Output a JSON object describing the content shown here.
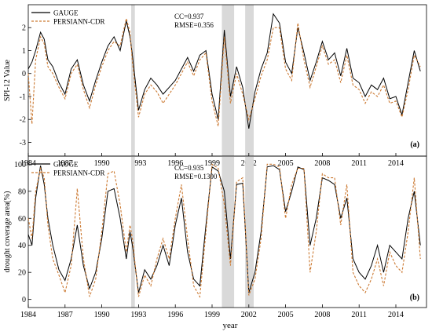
{
  "x_axis_label": "year",
  "x_tick_labels": [
    "1984",
    "1987",
    "1990",
    "1993",
    "1996",
    "1999",
    "2002",
    "2005",
    "2008",
    "2011",
    "2014"
  ],
  "x_ticks": [
    1984,
    1987,
    1990,
    1993,
    1996,
    1999,
    2002,
    2005,
    2008,
    2011,
    2014
  ],
  "x_range": [
    1984,
    2016.5
  ],
  "shaded_periods": [
    [
      1992.4,
      1992.7
    ],
    [
      1999.8,
      2000.8
    ],
    [
      2001.7,
      2002.4
    ]
  ],
  "colors": {
    "gauge": "#000000",
    "persiann": "#cc7a33",
    "shade": "#d9d9d9"
  },
  "chart_data": [
    {
      "type": "line",
      "panel_label": "(a)",
      "ylabel": "SPI-12 Value",
      "ylim": [
        -3.6,
        3.0
      ],
      "yticks": [
        -3,
        -2,
        -1,
        0,
        1,
        2
      ],
      "ytick_labels": [
        "-3",
        "-2",
        "-1",
        "0",
        "1",
        "2"
      ],
      "annotation": [
        "CC=0.937",
        "RMSE=0.356"
      ],
      "legend": [
        "GAUGE",
        "PERSIANN-CDR"
      ],
      "series": [
        {
          "name": "GAUGE",
          "style": "solid",
          "color": "#000000",
          "x": [
            1984,
            1984.3,
            1984.6,
            1985,
            1985.3,
            1985.6,
            1986,
            1986.5,
            1987,
            1987.5,
            1988,
            1988.5,
            1989,
            1989.5,
            1990,
            1990.5,
            1991,
            1991.5,
            1992,
            1992.3,
            1992.5,
            1993,
            1993.5,
            1994,
            1994.5,
            1995,
            1995.5,
            1996,
            1996.5,
            1997,
            1997.5,
            1998,
            1998.5,
            1999,
            1999.5,
            2000,
            2000.5,
            2001,
            2001.5,
            2002,
            2002.5,
            2003,
            2003.5,
            2004,
            2004.5,
            2005,
            2005.5,
            2006,
            2006.5,
            2007,
            2007.5,
            2008,
            2008.5,
            2009,
            2009.5,
            2010,
            2010.5,
            2011,
            2011.5,
            2012,
            2012.5,
            2013,
            2013.5,
            2014,
            2014.5,
            2015,
            2015.5,
            2016
          ],
          "y": [
            0.2,
            0.5,
            1.0,
            1.8,
            1.5,
            0.6,
            0.3,
            -0.4,
            -0.9,
            0.2,
            0.6,
            -0.5,
            -1.2,
            -0.3,
            0.5,
            1.2,
            1.6,
            1.0,
            2.3,
            1.6,
            0.8,
            -1.6,
            -0.7,
            -0.2,
            -0.5,
            -0.9,
            -0.6,
            -0.3,
            0.2,
            0.7,
            0.1,
            0.8,
            1.0,
            -0.9,
            -2.0,
            1.9,
            -1.0,
            0.3,
            -0.6,
            -2.4,
            -0.8,
            0.2,
            0.9,
            2.6,
            2.2,
            0.5,
            0.0,
            2.0,
            0.9,
            -0.3,
            0.5,
            1.4,
            0.6,
            0.9,
            -0.1,
            1.1,
            -0.2,
            -0.4,
            -1.0,
            -0.5,
            -0.7,
            -0.2,
            -1.1,
            -1.0,
            -1.8,
            -0.4,
            1.0,
            0.1
          ]
        },
        {
          "name": "PERSIANN-CDR",
          "style": "dashed",
          "color": "#cc7a33",
          "x": [
            1984,
            1984.3,
            1984.6,
            1985,
            1985.3,
            1985.6,
            1986,
            1986.5,
            1987,
            1987.5,
            1988,
            1988.5,
            1989,
            1989.5,
            1990,
            1990.5,
            1991,
            1991.5,
            1992,
            1992.3,
            1992.5,
            1993,
            1993.5,
            1994,
            1994.5,
            1995,
            1995.5,
            1996,
            1996.5,
            1997,
            1997.5,
            1998,
            1998.5,
            1999,
            1999.5,
            2000,
            2000.5,
            2001,
            2001.5,
            2002,
            2002.5,
            2003,
            2003.5,
            2004,
            2004.5,
            2005,
            2005.5,
            2006,
            2006.5,
            2007,
            2007.5,
            2008,
            2008.5,
            2009,
            2009.5,
            2010,
            2010.5,
            2011,
            2011.5,
            2012,
            2012.5,
            2013,
            2013.5,
            2014,
            2014.5,
            2015,
            2015.5,
            2016
          ],
          "y": [
            0.0,
            -2.2,
            0.6,
            1.6,
            1.3,
            0.3,
            0.0,
            -0.6,
            -1.1,
            0.0,
            0.4,
            -0.7,
            -1.5,
            -0.5,
            0.3,
            1.0,
            1.4,
            1.2,
            2.4,
            1.8,
            0.5,
            -1.9,
            -0.9,
            -0.5,
            -0.8,
            -1.3,
            -0.9,
            -0.5,
            0.0,
            0.5,
            -0.1,
            0.6,
            0.9,
            -1.2,
            -2.3,
            1.6,
            -1.3,
            0.0,
            -0.9,
            -2.0,
            -1.1,
            -0.1,
            0.6,
            2.0,
            2.0,
            0.2,
            -0.3,
            2.2,
            0.6,
            -0.6,
            0.3,
            1.2,
            0.4,
            0.6,
            -0.4,
            0.8,
            -0.5,
            -0.7,
            -1.3,
            -0.8,
            -1.0,
            -0.5,
            -1.3,
            -1.2,
            -1.9,
            -0.7,
            0.8,
            0.3
          ]
        }
      ]
    },
    {
      "type": "line",
      "panel_label": "(b)",
      "ylabel": "drought coverage area(%)",
      "ylim": [
        -6,
        106
      ],
      "yticks": [
        0,
        20,
        40,
        60,
        80,
        100
      ],
      "ytick_labels": [
        "0",
        "20",
        "40",
        "60",
        "80",
        "100"
      ],
      "annotation": [
        "CC=0.935",
        "RMSE=0.1300"
      ],
      "legend": [
        "GAUGE",
        "PERSIANN-CDR"
      ],
      "series": [
        {
          "name": "GAUGE",
          "style": "solid",
          "color": "#000000",
          "x": [
            1984,
            1984.3,
            1984.6,
            1985,
            1985.3,
            1985.6,
            1986,
            1986.5,
            1987,
            1987.5,
            1988,
            1988.5,
            1989,
            1989.5,
            1990,
            1990.5,
            1991,
            1991.5,
            1992,
            1992.3,
            1992.5,
            1993,
            1993.5,
            1994,
            1994.5,
            1995,
            1995.5,
            1996,
            1996.5,
            1997,
            1997.5,
            1998,
            1998.5,
            1999,
            1999.5,
            2000,
            2000.5,
            2001,
            2001.5,
            2002,
            2002.5,
            2003,
            2003.5,
            2004,
            2004.5,
            2005,
            2005.5,
            2006,
            2006.5,
            2007,
            2007.5,
            2008,
            2008.5,
            2009,
            2009.5,
            2010,
            2010.5,
            2011,
            2011.5,
            2012,
            2012.5,
            2013,
            2013.5,
            2014,
            2014.5,
            2015,
            2015.5,
            2016
          ],
          "y": [
            48,
            40,
            75,
            99,
            85,
            60,
            40,
            22,
            14,
            30,
            55,
            25,
            8,
            20,
            45,
            80,
            82,
            60,
            30,
            50,
            40,
            5,
            22,
            15,
            25,
            40,
            25,
            55,
            75,
            35,
            15,
            10,
            55,
            98,
            95,
            80,
            30,
            85,
            86,
            5,
            20,
            50,
            98,
            99,
            96,
            65,
            80,
            98,
            96,
            40,
            60,
            90,
            88,
            85,
            60,
            75,
            30,
            20,
            15,
            25,
            40,
            20,
            40,
            35,
            30,
            60,
            80,
            40
          ]
        },
        {
          "name": "PERSIANN-CDR",
          "style": "dashed",
          "color": "#cc7a33",
          "x": [
            1984,
            1984.3,
            1984.6,
            1985,
            1985.3,
            1985.6,
            1986,
            1986.5,
            1987,
            1987.5,
            1988,
            1988.5,
            1989,
            1989.5,
            1990,
            1990.5,
            1991,
            1991.5,
            1992,
            1992.3,
            1992.5,
            1993,
            1993.5,
            1994,
            1994.5,
            1995,
            1995.5,
            1996,
            1996.5,
            1997,
            1997.5,
            1998,
            1998.5,
            1999,
            1999.5,
            2000,
            2000.5,
            2001,
            2001.5,
            2002,
            2002.5,
            2003,
            2003.5,
            2004,
            2004.5,
            2005,
            2005.5,
            2006,
            2006.5,
            2007,
            2007.5,
            2008,
            2008.5,
            2009,
            2009.5,
            2010,
            2010.5,
            2011,
            2011.5,
            2012,
            2012.5,
            2013,
            2013.5,
            2014,
            2014.5,
            2015,
            2015.5,
            2016
          ],
          "y": [
            60,
            45,
            80,
            97,
            90,
            55,
            30,
            18,
            5,
            25,
            82,
            30,
            2,
            15,
            50,
            93,
            95,
            70,
            35,
            55,
            45,
            2,
            18,
            10,
            30,
            45,
            30,
            60,
            85,
            45,
            10,
            2,
            50,
            100,
            97,
            70,
            25,
            87,
            90,
            3,
            15,
            45,
            100,
            100,
            98,
            60,
            85,
            97,
            97,
            20,
            50,
            93,
            90,
            90,
            55,
            85,
            20,
            10,
            5,
            15,
            30,
            10,
            35,
            25,
            20,
            50,
            90,
            30
          ]
        }
      ]
    }
  ]
}
